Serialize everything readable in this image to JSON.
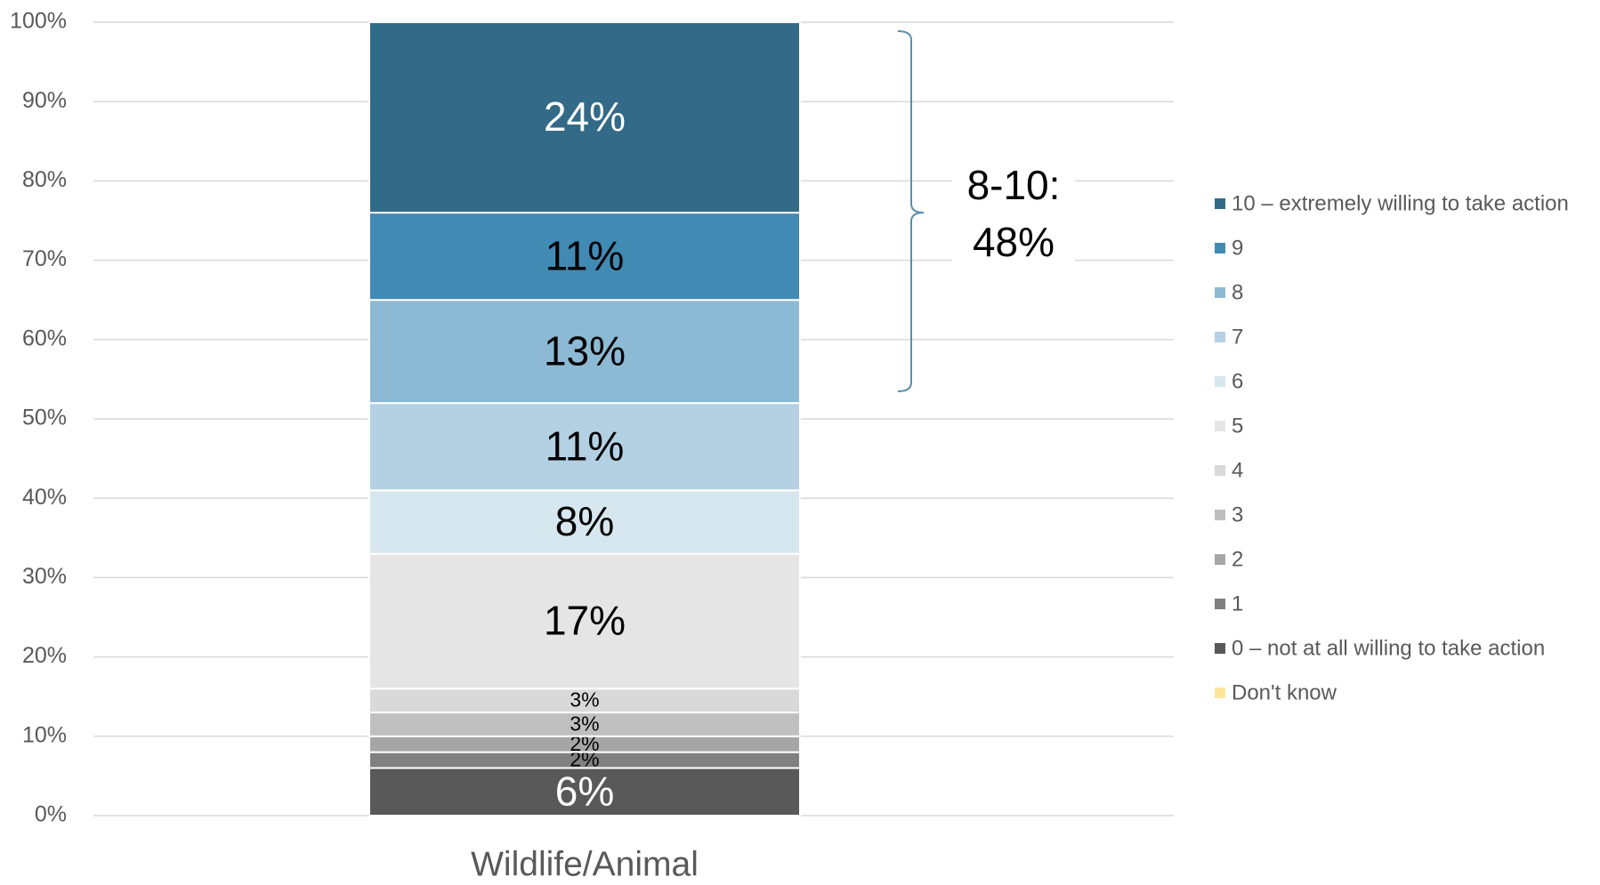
{
  "chart_data": {
    "type": "stacked_bar",
    "categories": [
      "Wildlife/Animal"
    ],
    "ylim": [
      0,
      100
    ],
    "yticks": [
      {
        "value": 0,
        "label": "0%"
      },
      {
        "value": 10,
        "label": "10%"
      },
      {
        "value": 20,
        "label": "20%"
      },
      {
        "value": 30,
        "label": "30%"
      },
      {
        "value": 40,
        "label": "40%"
      },
      {
        "value": 50,
        "label": "50%"
      },
      {
        "value": 60,
        "label": "60%"
      },
      {
        "value": 70,
        "label": "70%"
      },
      {
        "value": 80,
        "label": "80%"
      },
      {
        "value": 90,
        "label": "90%"
      },
      {
        "value": 100,
        "label": "100%"
      }
    ],
    "grid": true,
    "legend": "right",
    "annotation": "8-10: 48%",
    "series": [
      {
        "name": "10 – extremely willing to take action",
        "color": "#336a87",
        "values": [
          24
        ],
        "value_labels": [
          "24%"
        ]
      },
      {
        "name": "9",
        "color": "#418ab3",
        "values": [
          11
        ],
        "value_labels": [
          "11%"
        ]
      },
      {
        "name": "8",
        "color": "#8cbad4",
        "values": [
          13
        ],
        "value_labels": [
          "13%"
        ]
      },
      {
        "name": "7",
        "color": "#b3d1e3",
        "values": [
          11
        ],
        "value_labels": [
          "11%"
        ]
      },
      {
        "name": "6",
        "color": "#d6e7f0",
        "values": [
          8
        ],
        "value_labels": [
          "8%"
        ]
      },
      {
        "name": "5",
        "color": "#e5e5e5",
        "values": [
          17
        ],
        "value_labels": [
          "17%"
        ]
      },
      {
        "name": "4",
        "color": "#d9d9d9",
        "values": [
          3
        ],
        "value_labels": [
          "3%"
        ]
      },
      {
        "name": "3",
        "color": "#bfbfbf",
        "values": [
          3
        ],
        "value_labels": [
          "3%"
        ]
      },
      {
        "name": "2",
        "color": "#a6a6a6",
        "values": [
          2
        ],
        "value_labels": [
          "2%"
        ]
      },
      {
        "name": "1",
        "color": "#808080",
        "values": [
          2
        ],
        "value_labels": [
          "2%"
        ]
      },
      {
        "name": "0 – not at all willing to take action",
        "color": "#595959",
        "values": [
          6
        ],
        "value_labels": [
          "6%"
        ]
      },
      {
        "name": "Don't know",
        "color": "#ffe699",
        "values": [
          0
        ]
      }
    ]
  }
}
